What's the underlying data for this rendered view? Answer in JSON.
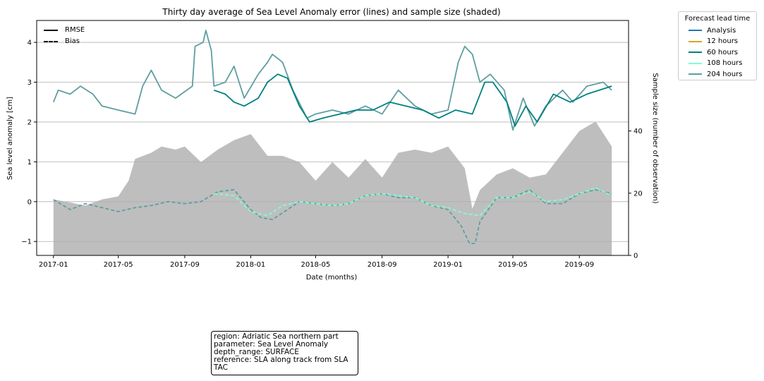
{
  "chart_data": {
    "type": "line",
    "title": "Thirty day average of Sea Level Anomaly error (lines) and sample size (shaded)",
    "xlabel": "Date (months)",
    "ylabel": "Sea level anomaly [cm]",
    "y2label": "Sample size (number of observation)",
    "x_ticks": [
      "2017-01",
      "2017-05",
      "2017-09",
      "2018-01",
      "2018-05",
      "2018-09",
      "2019-01",
      "2019-05",
      "2019-09"
    ],
    "x_tick_dates": [
      "2017-01-01",
      "2017-05-01",
      "2017-09-01",
      "2018-01-01",
      "2018-05-01",
      "2018-09-01",
      "2019-01-01",
      "2019-05-01",
      "2019-09-01"
    ],
    "xlim": [
      "2016-12-01",
      "2019-12-01"
    ],
    "y_ticks": [
      -1,
      0,
      1,
      2,
      3,
      4
    ],
    "ylim": [
      -1.35,
      4.55
    ],
    "y2_ticks": [
      0,
      20,
      40
    ],
    "y2lim": [
      0,
      75.5
    ],
    "grid": "horizontal",
    "legend_placement": "upper-left and outside-right",
    "legend_lead_title": "Forecast lead time",
    "legend_metric": [
      "RMSE",
      "Bias"
    ],
    "series_colors": {
      "Analysis": "#1f77b4",
      "12 hours": "#daa520",
      "60 hours": "#008080",
      "108 hours": "#7fffd4",
      "204 hours": "#5f9ea0",
      "sample_size": "#bebebe"
    },
    "sample_size": [
      {
        "date": "2017-01-01",
        "value": 18
      },
      {
        "date": "2017-02-01",
        "value": 17
      },
      {
        "date": "2017-03-01",
        "value": 16
      },
      {
        "date": "2017-04-01",
        "value": 18
      },
      {
        "date": "2017-05-01",
        "value": 19
      },
      {
        "date": "2017-05-20",
        "value": 24
      },
      {
        "date": "2017-06-01",
        "value": 31
      },
      {
        "date": "2017-07-01",
        "value": 33
      },
      {
        "date": "2017-07-20",
        "value": 35
      },
      {
        "date": "2017-08-15",
        "value": 34
      },
      {
        "date": "2017-09-01",
        "value": 35
      },
      {
        "date": "2017-10-01",
        "value": 30
      },
      {
        "date": "2017-11-01",
        "value": 34
      },
      {
        "date": "2017-12-01",
        "value": 37
      },
      {
        "date": "2018-01-01",
        "value": 39
      },
      {
        "date": "2018-02-01",
        "value": 32
      },
      {
        "date": "2018-03-01",
        "value": 32
      },
      {
        "date": "2018-04-01",
        "value": 30
      },
      {
        "date": "2018-05-01",
        "value": 24
      },
      {
        "date": "2018-06-01",
        "value": 30
      },
      {
        "date": "2018-07-01",
        "value": 25
      },
      {
        "date": "2018-08-01",
        "value": 31
      },
      {
        "date": "2018-09-01",
        "value": 25
      },
      {
        "date": "2018-10-01",
        "value": 33
      },
      {
        "date": "2018-11-01",
        "value": 34
      },
      {
        "date": "2018-12-01",
        "value": 33
      },
      {
        "date": "2019-01-01",
        "value": 35
      },
      {
        "date": "2019-02-01",
        "value": 28
      },
      {
        "date": "2019-02-15",
        "value": 15
      },
      {
        "date": "2019-03-01",
        "value": 21
      },
      {
        "date": "2019-04-01",
        "value": 26
      },
      {
        "date": "2019-05-01",
        "value": 28
      },
      {
        "date": "2019-06-01",
        "value": 25
      },
      {
        "date": "2019-07-01",
        "value": 26
      },
      {
        "date": "2019-08-01",
        "value": 33
      },
      {
        "date": "2019-09-01",
        "value": 40
      },
      {
        "date": "2019-10-01",
        "value": 43
      },
      {
        "date": "2019-10-31",
        "value": 35
      }
    ],
    "series": [
      {
        "name": "204 hours",
        "metric": "RMSE",
        "points": [
          {
            "date": "2017-01-01",
            "value": 2.5
          },
          {
            "date": "2017-01-10",
            "value": 2.8
          },
          {
            "date": "2017-02-01",
            "value": 2.7
          },
          {
            "date": "2017-02-20",
            "value": 2.9
          },
          {
            "date": "2017-03-15",
            "value": 2.7
          },
          {
            "date": "2017-04-01",
            "value": 2.4
          },
          {
            "date": "2017-05-01",
            "value": 2.3
          },
          {
            "date": "2017-06-01",
            "value": 2.2
          },
          {
            "date": "2017-06-15",
            "value": 2.9
          },
          {
            "date": "2017-07-01",
            "value": 3.3
          },
          {
            "date": "2017-07-20",
            "value": 2.8
          },
          {
            "date": "2017-08-15",
            "value": 2.6
          },
          {
            "date": "2017-09-15",
            "value": 2.9
          },
          {
            "date": "2017-09-20",
            "value": 3.9
          },
          {
            "date": "2017-10-05",
            "value": 4.0
          },
          {
            "date": "2017-10-10",
            "value": 4.3
          },
          {
            "date": "2017-10-20",
            "value": 3.8
          },
          {
            "date": "2017-10-25",
            "value": 2.9
          },
          {
            "date": "2017-11-15",
            "value": 3.0
          },
          {
            "date": "2017-12-01",
            "value": 3.4
          },
          {
            "date": "2017-12-20",
            "value": 2.6
          },
          {
            "date": "2018-01-15",
            "value": 3.2
          },
          {
            "date": "2018-02-01",
            "value": 3.5
          },
          {
            "date": "2018-02-10",
            "value": 3.7
          },
          {
            "date": "2018-03-01",
            "value": 3.5
          },
          {
            "date": "2018-03-20",
            "value": 2.8
          },
          {
            "date": "2018-04-15",
            "value": 2.1
          },
          {
            "date": "2018-05-01",
            "value": 2.2
          },
          {
            "date": "2018-06-01",
            "value": 2.3
          },
          {
            "date": "2018-07-01",
            "value": 2.2
          },
          {
            "date": "2018-08-01",
            "value": 2.4
          },
          {
            "date": "2018-09-01",
            "value": 2.2
          },
          {
            "date": "2018-10-01",
            "value": 2.8
          },
          {
            "date": "2018-11-01",
            "value": 2.4
          },
          {
            "date": "2018-12-01",
            "value": 2.2
          },
          {
            "date": "2019-01-01",
            "value": 2.3
          },
          {
            "date": "2019-01-20",
            "value": 3.5
          },
          {
            "date": "2019-02-01",
            "value": 3.9
          },
          {
            "date": "2019-02-15",
            "value": 3.7
          },
          {
            "date": "2019-03-01",
            "value": 3.0
          },
          {
            "date": "2019-03-20",
            "value": 3.2
          },
          {
            "date": "2019-04-15",
            "value": 2.8
          },
          {
            "date": "2019-05-01",
            "value": 1.8
          },
          {
            "date": "2019-05-20",
            "value": 2.6
          },
          {
            "date": "2019-06-10",
            "value": 1.9
          },
          {
            "date": "2019-07-01",
            "value": 2.4
          },
          {
            "date": "2019-08-01",
            "value": 2.8
          },
          {
            "date": "2019-08-20",
            "value": 2.5
          },
          {
            "date": "2019-09-15",
            "value": 2.9
          },
          {
            "date": "2019-10-15",
            "value": 3.0
          },
          {
            "date": "2019-10-31",
            "value": 2.8
          }
        ]
      },
      {
        "name": "60 hours",
        "metric": "RMSE",
        "points": [
          {
            "date": "2017-10-25",
            "value": 2.8
          },
          {
            "date": "2017-11-15",
            "value": 2.7
          },
          {
            "date": "2017-12-01",
            "value": 2.5
          },
          {
            "date": "2017-12-20",
            "value": 2.4
          },
          {
            "date": "2018-01-15",
            "value": 2.6
          },
          {
            "date": "2018-02-01",
            "value": 3.0
          },
          {
            "date": "2018-02-20",
            "value": 3.2
          },
          {
            "date": "2018-03-10",
            "value": 3.1
          },
          {
            "date": "2018-04-01",
            "value": 2.4
          },
          {
            "date": "2018-04-20",
            "value": 2.0
          },
          {
            "date": "2018-05-15",
            "value": 2.1
          },
          {
            "date": "2018-06-15",
            "value": 2.2
          },
          {
            "date": "2018-07-15",
            "value": 2.3
          },
          {
            "date": "2018-08-15",
            "value": 2.3
          },
          {
            "date": "2018-09-15",
            "value": 2.5
          },
          {
            "date": "2018-10-15",
            "value": 2.4
          },
          {
            "date": "2018-11-15",
            "value": 2.3
          },
          {
            "date": "2018-12-15",
            "value": 2.1
          },
          {
            "date": "2019-01-15",
            "value": 2.3
          },
          {
            "date": "2019-02-15",
            "value": 2.2
          },
          {
            "date": "2019-03-10",
            "value": 3.0
          },
          {
            "date": "2019-03-25",
            "value": 3.0
          },
          {
            "date": "2019-04-20",
            "value": 2.5
          },
          {
            "date": "2019-05-05",
            "value": 1.9
          },
          {
            "date": "2019-05-25",
            "value": 2.4
          },
          {
            "date": "2019-06-15",
            "value": 2.0
          },
          {
            "date": "2019-07-15",
            "value": 2.7
          },
          {
            "date": "2019-08-15",
            "value": 2.5
          },
          {
            "date": "2019-09-15",
            "value": 2.7
          },
          {
            "date": "2019-10-31",
            "value": 2.9
          }
        ]
      },
      {
        "name": "204 hours",
        "metric": "Bias",
        "points": [
          {
            "date": "2017-01-01",
            "value": 0.05
          },
          {
            "date": "2017-02-01",
            "value": -0.2
          },
          {
            "date": "2017-03-01",
            "value": -0.05
          },
          {
            "date": "2017-04-01",
            "value": -0.15
          },
          {
            "date": "2017-05-01",
            "value": -0.25
          },
          {
            "date": "2017-06-01",
            "value": -0.15
          },
          {
            "date": "2017-07-01",
            "value": -0.1
          },
          {
            "date": "2017-08-01",
            "value": 0.0
          },
          {
            "date": "2017-09-01",
            "value": -0.05
          },
          {
            "date": "2017-10-01",
            "value": 0.0
          },
          {
            "date": "2017-11-01",
            "value": 0.25
          },
          {
            "date": "2017-12-01",
            "value": 0.3
          },
          {
            "date": "2018-01-01",
            "value": -0.2
          },
          {
            "date": "2018-01-20",
            "value": -0.4
          },
          {
            "date": "2018-02-10",
            "value": -0.45
          },
          {
            "date": "2018-03-10",
            "value": -0.2
          },
          {
            "date": "2018-04-01",
            "value": 0.0
          },
          {
            "date": "2018-05-01",
            "value": -0.05
          },
          {
            "date": "2018-06-01",
            "value": -0.1
          },
          {
            "date": "2018-07-01",
            "value": -0.05
          },
          {
            "date": "2018-08-01",
            "value": 0.15
          },
          {
            "date": "2018-09-01",
            "value": 0.2
          },
          {
            "date": "2018-10-01",
            "value": 0.1
          },
          {
            "date": "2018-11-01",
            "value": 0.1
          },
          {
            "date": "2018-12-01",
            "value": -0.1
          },
          {
            "date": "2019-01-01",
            "value": -0.2
          },
          {
            "date": "2019-01-25",
            "value": -0.6
          },
          {
            "date": "2019-02-10",
            "value": -1.05
          },
          {
            "date": "2019-02-20",
            "value": -1.05
          },
          {
            "date": "2019-03-01",
            "value": -0.5
          },
          {
            "date": "2019-04-01",
            "value": 0.1
          },
          {
            "date": "2019-05-01",
            "value": 0.1
          },
          {
            "date": "2019-06-01",
            "value": 0.3
          },
          {
            "date": "2019-07-01",
            "value": -0.05
          },
          {
            "date": "2019-08-01",
            "value": -0.05
          },
          {
            "date": "2019-09-01",
            "value": 0.2
          },
          {
            "date": "2019-10-01",
            "value": 0.3
          },
          {
            "date": "2019-10-31",
            "value": 0.2
          }
        ]
      },
      {
        "name": "108 hours",
        "metric": "Bias",
        "points": [
          {
            "date": "2017-10-25",
            "value": 0.2
          },
          {
            "date": "2017-12-01",
            "value": 0.15
          },
          {
            "date": "2018-01-01",
            "value": -0.25
          },
          {
            "date": "2018-02-01",
            "value": -0.35
          },
          {
            "date": "2018-03-01",
            "value": -0.1
          },
          {
            "date": "2018-04-01",
            "value": 0.0
          },
          {
            "date": "2018-05-01",
            "value": -0.05
          },
          {
            "date": "2018-06-01",
            "value": -0.1
          },
          {
            "date": "2018-07-01",
            "value": -0.05
          },
          {
            "date": "2018-08-01",
            "value": 0.15
          },
          {
            "date": "2018-09-01",
            "value": 0.2
          },
          {
            "date": "2018-10-01",
            "value": 0.15
          },
          {
            "date": "2018-11-01",
            "value": 0.1
          },
          {
            "date": "2018-12-01",
            "value": -0.1
          },
          {
            "date": "2019-01-01",
            "value": -0.15
          },
          {
            "date": "2019-02-01",
            "value": -0.3
          },
          {
            "date": "2019-03-01",
            "value": -0.35
          },
          {
            "date": "2019-04-01",
            "value": 0.1
          },
          {
            "date": "2019-05-01",
            "value": 0.1
          },
          {
            "date": "2019-06-01",
            "value": 0.25
          },
          {
            "date": "2019-07-01",
            "value": 0.0
          },
          {
            "date": "2019-08-01",
            "value": 0.05
          },
          {
            "date": "2019-09-01",
            "value": 0.2
          },
          {
            "date": "2019-10-01",
            "value": 0.35
          },
          {
            "date": "2019-10-31",
            "value": 0.15
          }
        ]
      }
    ]
  },
  "legend_lead": {
    "title": "Forecast lead time",
    "items": [
      {
        "label": "Analysis",
        "color": "#1f77b4"
      },
      {
        "label": "12 hours",
        "color": "#daa520"
      },
      {
        "label": "60 hours",
        "color": "#008080"
      },
      {
        "label": "108 hours",
        "color": "#7fffd4"
      },
      {
        "label": "204 hours",
        "color": "#5f9ea0"
      }
    ]
  },
  "legend_metric": {
    "rmse": "RMSE",
    "bias": "Bias"
  },
  "info_box": {
    "text": "region: Adriatic Sea northern part\nparameter: Sea Level Anomaly\ndepth_range: SURFACE\nreference: SLA along track from SLA\nTAC"
  }
}
